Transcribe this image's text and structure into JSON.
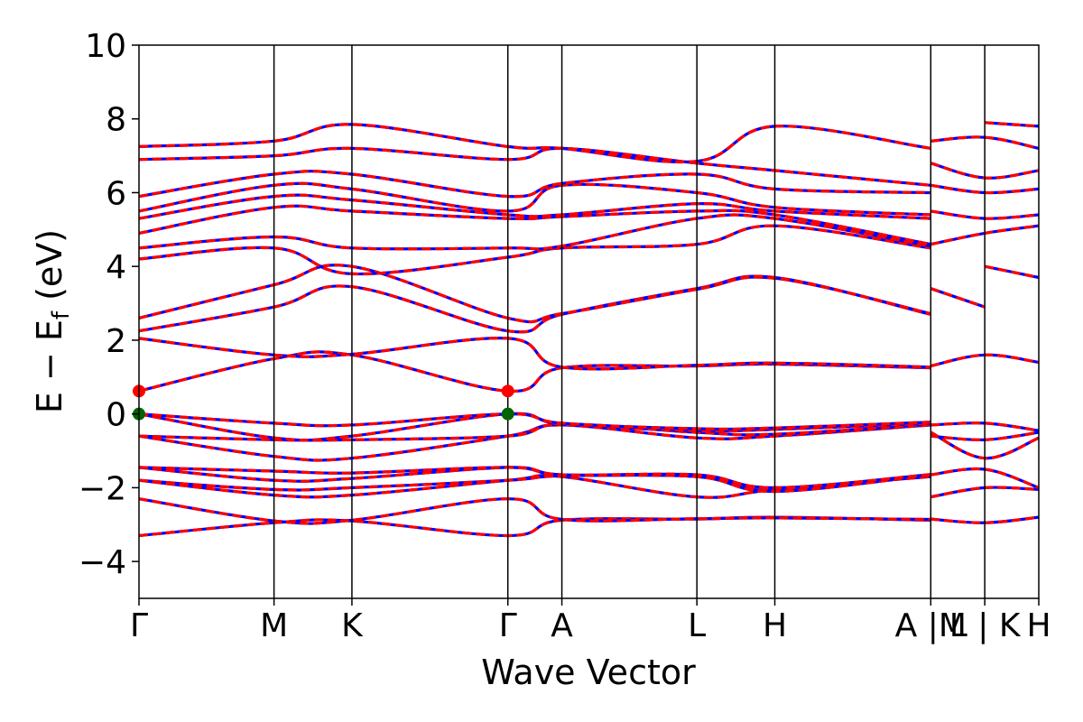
{
  "chart_data": {
    "type": "line",
    "xlabel": "Wave Vector",
    "ylabel_main": "E − E",
    "ylabel_sub": "f",
    "ylabel_unit": " (eV)",
    "ylim": [
      -5,
      10
    ],
    "yticks": [
      10,
      8,
      6,
      4,
      2,
      0,
      -2,
      -4
    ],
    "ytick_labels": [
      "10",
      "8",
      "6",
      "4",
      "2",
      "0",
      "−2",
      "−4"
    ],
    "kpath": [
      {
        "label": "Γ",
        "k": 0
      },
      {
        "label": "M",
        "k": 1.0
      },
      {
        "label": "K",
        "k": 1.577
      },
      {
        "label": "Γ",
        "k": 2.732
      },
      {
        "label": "A",
        "k": 3.132
      },
      {
        "label": "L",
        "k": 4.132
      },
      {
        "label": "H",
        "k": 4.709
      },
      {
        "label": "A |M",
        "k": 5.864
      },
      {
        "label": "L | K",
        "k": 6.264
      },
      {
        "label": "H",
        "k": 6.664
      }
    ],
    "colors": {
      "spin_up": "#ff0000",
      "spin_down": "#0000ff",
      "cbm": "#ff0000",
      "vbm": "#006400"
    },
    "markers": [
      {
        "name": "CBM",
        "k": 0,
        "e": 0.62
      },
      {
        "name": "CBM",
        "k": 2.732,
        "e": 0.62
      },
      {
        "name": "VBM",
        "k": 0,
        "e": 0.0
      },
      {
        "name": "VBM",
        "k": 2.732,
        "e": 0.0
      }
    ],
    "bands": [
      [
        [
          0,
          -3.3
        ],
        [
          1.0,
          -2.95
        ],
        [
          1.577,
          -2.9
        ],
        [
          2.732,
          -3.3
        ],
        [
          3.132,
          -2.88
        ],
        [
          4.132,
          -2.85
        ],
        [
          4.709,
          -2.8
        ],
        [
          5.864,
          -2.88
        ]
      ],
      [
        [
          0,
          -2.3
        ],
        [
          1.0,
          -2.9
        ],
        [
          1.577,
          -2.88
        ],
        [
          2.732,
          -2.3
        ],
        [
          3.132,
          -2.86
        ],
        [
          4.132,
          -2.84
        ],
        [
          4.709,
          -2.82
        ],
        [
          5.864,
          -2.86
        ]
      ],
      [
        [
          0,
          -1.8
        ],
        [
          1.0,
          -2.2
        ],
        [
          1.577,
          -2.2
        ],
        [
          2.732,
          -1.8
        ],
        [
          3.132,
          -1.7
        ],
        [
          4.132,
          -2.25
        ],
        [
          4.709,
          -2.05
        ],
        [
          5.864,
          -1.7
        ]
      ],
      [
        [
          0,
          -1.8
        ],
        [
          1.0,
          -2.05
        ],
        [
          1.577,
          -2.0
        ],
        [
          2.732,
          -1.8
        ],
        [
          3.132,
          -1.68
        ],
        [
          4.132,
          -1.7
        ],
        [
          4.709,
          -2.08
        ],
        [
          5.864,
          -1.66
        ]
      ],
      [
        [
          0,
          -1.45
        ],
        [
          1.0,
          -1.8
        ],
        [
          1.577,
          -1.75
        ],
        [
          2.732,
          -1.45
        ],
        [
          3.132,
          -1.65
        ],
        [
          4.132,
          -1.7
        ],
        [
          4.709,
          -2.1
        ],
        [
          5.864,
          -1.65
        ]
      ],
      [
        [
          0,
          -1.45
        ],
        [
          1.0,
          -1.55
        ],
        [
          1.577,
          -1.6
        ],
        [
          2.732,
          -1.45
        ],
        [
          3.132,
          -1.65
        ],
        [
          4.132,
          -1.65
        ],
        [
          4.709,
          -2.0
        ],
        [
          5.864,
          -1.64
        ]
      ],
      [
        [
          0,
          -0.6
        ],
        [
          1.0,
          -1.15
        ],
        [
          1.577,
          -1.2
        ],
        [
          2.732,
          -0.6
        ],
        [
          3.132,
          -0.3
        ],
        [
          4.132,
          -0.65
        ],
        [
          4.709,
          -0.6
        ],
        [
          5.864,
          -0.3
        ]
      ],
      [
        [
          0,
          -0.6
        ],
        [
          1.0,
          -0.7
        ],
        [
          1.577,
          -0.7
        ],
        [
          2.732,
          -0.6
        ],
        [
          3.132,
          -0.28
        ],
        [
          4.132,
          -0.5
        ],
        [
          4.709,
          -0.55
        ],
        [
          5.864,
          -0.28
        ]
      ],
      [
        [
          0,
          0.0
        ],
        [
          1.0,
          -0.65
        ],
        [
          1.577,
          -0.6
        ],
        [
          2.732,
          0.0
        ],
        [
          3.132,
          -0.28
        ],
        [
          4.132,
          -0.45
        ],
        [
          4.709,
          -0.42
        ],
        [
          5.864,
          -0.25
        ]
      ],
      [
        [
          0,
          0.0
        ],
        [
          1.0,
          -0.25
        ],
        [
          1.577,
          -0.3
        ],
        [
          2.732,
          0.0
        ],
        [
          3.132,
          -0.25
        ],
        [
          4.132,
          -0.4
        ],
        [
          4.709,
          -0.38
        ],
        [
          5.864,
          -0.22
        ]
      ],
      [
        [
          0,
          0.62
        ],
        [
          1.0,
          1.5
        ],
        [
          1.577,
          1.6
        ],
        [
          2.732,
          0.62
        ],
        [
          3.132,
          1.25
        ],
        [
          4.132,
          1.3
        ],
        [
          4.709,
          1.35
        ],
        [
          5.864,
          1.25
        ]
      ],
      [
        [
          0,
          2.05
        ],
        [
          1.0,
          1.6
        ],
        [
          1.577,
          1.62
        ],
        [
          2.732,
          2.05
        ],
        [
          3.132,
          1.27
        ],
        [
          4.132,
          1.32
        ],
        [
          4.709,
          1.38
        ],
        [
          5.864,
          1.27
        ]
      ],
      [
        [
          0,
          2.25
        ],
        [
          1.0,
          2.9
        ],
        [
          1.577,
          3.45
        ],
        [
          2.732,
          2.25
        ],
        [
          3.132,
          2.7
        ],
        [
          4.132,
          3.4
        ],
        [
          4.709,
          3.7
        ],
        [
          5.864,
          2.7
        ]
      ],
      [
        [
          0,
          2.6
        ],
        [
          1.0,
          3.5
        ],
        [
          1.577,
          4.0
        ],
        [
          2.732,
          2.6
        ],
        [
          3.132,
          2.72
        ],
        [
          4.132,
          3.38
        ],
        [
          4.709,
          3.68
        ],
        [
          5.864,
          2.72
        ]
      ],
      [
        [
          0,
          4.2
        ],
        [
          1.0,
          4.5
        ],
        [
          1.577,
          3.8
        ],
        [
          2.732,
          4.25
        ],
        [
          3.132,
          4.5
        ],
        [
          4.132,
          4.6
        ],
        [
          4.709,
          5.1
        ],
        [
          5.864,
          4.5
        ]
      ],
      [
        [
          0,
          4.5
        ],
        [
          1.0,
          4.8
        ],
        [
          1.577,
          4.5
        ],
        [
          2.732,
          4.5
        ],
        [
          3.132,
          4.55
        ],
        [
          4.132,
          5.3
        ],
        [
          4.709,
          5.3
        ],
        [
          5.864,
          4.55
        ]
      ],
      [
        [
          0,
          4.9
        ],
        [
          1.0,
          5.6
        ],
        [
          1.577,
          5.5
        ],
        [
          2.732,
          5.3
        ],
        [
          3.132,
          5.35
        ],
        [
          4.132,
          5.5
        ],
        [
          4.709,
          5.4
        ],
        [
          5.864,
          4.6
        ]
      ],
      [
        [
          0,
          5.3
        ],
        [
          1.0,
          5.9
        ],
        [
          1.577,
          5.8
        ],
        [
          2.732,
          5.4
        ],
        [
          3.132,
          5.4
        ],
        [
          4.132,
          5.7
        ],
        [
          4.709,
          5.5
        ],
        [
          5.864,
          5.3
        ]
      ],
      [
        [
          0,
          5.5
        ],
        [
          1.0,
          6.2
        ],
        [
          1.577,
          6.1
        ],
        [
          2.732,
          5.5
        ],
        [
          3.132,
          6.2
        ],
        [
          4.132,
          6.0
        ],
        [
          4.709,
          5.6
        ],
        [
          5.864,
          5.4
        ]
      ],
      [
        [
          0,
          5.9
        ],
        [
          1.0,
          6.5
        ],
        [
          1.577,
          6.5
        ],
        [
          2.732,
          5.9
        ],
        [
          3.132,
          6.25
        ],
        [
          4.132,
          6.5
        ],
        [
          4.709,
          6.1
        ],
        [
          5.864,
          6.0
        ]
      ],
      [
        [
          0,
          6.9
        ],
        [
          1.0,
          7.0
        ],
        [
          1.577,
          7.2
        ],
        [
          2.732,
          6.9
        ],
        [
          3.132,
          7.2
        ],
        [
          4.132,
          6.8
        ],
        [
          4.709,
          6.6
        ],
        [
          5.864,
          6.2
        ]
      ],
      [
        [
          0,
          7.25
        ],
        [
          1.0,
          7.4
        ],
        [
          1.577,
          7.85
        ],
        [
          2.732,
          7.25
        ],
        [
          3.132,
          7.2
        ],
        [
          4.132,
          6.85
        ],
        [
          4.709,
          7.8
        ],
        [
          5.864,
          7.2
        ]
      ],
      [
        [
          5.864,
          -2.85
        ],
        [
          6.264,
          -2.95
        ],
        [
          6.664,
          -2.8
        ]
      ],
      [
        [
          5.864,
          -2.25
        ],
        [
          6.264,
          -2.0
        ],
        [
          6.664,
          -2.05
        ]
      ],
      [
        [
          5.864,
          -1.65
        ],
        [
          6.264,
          -1.5
        ],
        [
          6.664,
          -2.0
        ]
      ],
      [
        [
          5.864,
          -0.6
        ],
        [
          6.264,
          -0.7
        ],
        [
          6.664,
          -0.5
        ]
      ],
      [
        [
          5.864,
          -0.5
        ],
        [
          6.264,
          -1.2
        ],
        [
          6.664,
          -0.65
        ]
      ],
      [
        [
          5.864,
          -0.3
        ],
        [
          6.264,
          -0.25
        ],
        [
          6.664,
          -0.45
        ]
      ],
      [
        [
          5.864,
          1.3
        ],
        [
          6.264,
          1.6
        ],
        [
          6.664,
          1.4
        ]
      ],
      [
        [
          5.864,
          3.4
        ],
        [
          6.264,
          2.9
        ]
      ],
      [
        [
          6.264,
          4.0
        ],
        [
          6.664,
          3.7
        ]
      ],
      [
        [
          5.864,
          4.6
        ],
        [
          6.264,
          4.9
        ],
        [
          6.664,
          5.1
        ]
      ],
      [
        [
          5.864,
          5.5
        ],
        [
          6.264,
          5.3
        ],
        [
          6.664,
          5.4
        ]
      ],
      [
        [
          5.864,
          6.2
        ],
        [
          6.264,
          6.0
        ],
        [
          6.664,
          6.1
        ]
      ],
      [
        [
          5.864,
          6.8
        ],
        [
          6.264,
          6.4
        ],
        [
          6.664,
          6.6
        ]
      ],
      [
        [
          5.864,
          7.4
        ],
        [
          6.264,
          7.5
        ],
        [
          6.664,
          7.2
        ]
      ],
      [
        [
          6.264,
          7.9
        ],
        [
          6.664,
          7.8
        ]
      ]
    ]
  }
}
